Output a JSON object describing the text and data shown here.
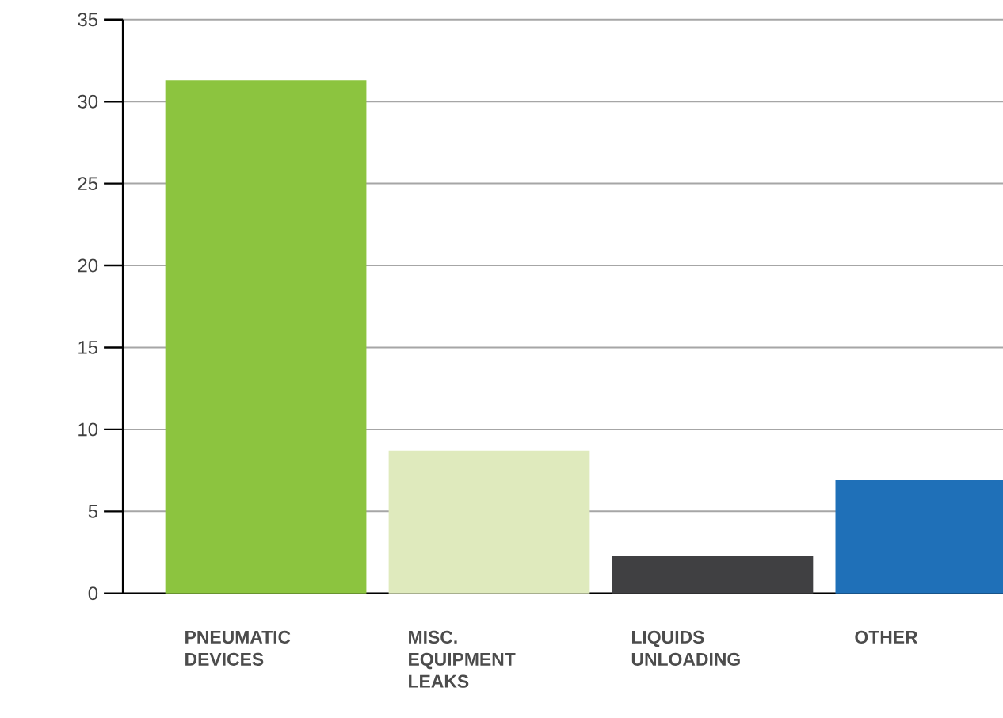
{
  "chart_data": {
    "type": "bar",
    "categories": [
      "PNEUMATIC DEVICES",
      "MISC. EQUIPMENT LEAKS",
      "LIQUIDS UNLOADING",
      "OTHER"
    ],
    "values": [
      31.3,
      8.7,
      2.3,
      6.9
    ],
    "colors": [
      "#8cc43f",
      "#dfeabd",
      "#404042",
      "#1f70b8"
    ],
    "ylim": [
      0,
      35
    ],
    "yticks": [
      0,
      5,
      10,
      15,
      20,
      25,
      30,
      35
    ],
    "grid": "y"
  }
}
